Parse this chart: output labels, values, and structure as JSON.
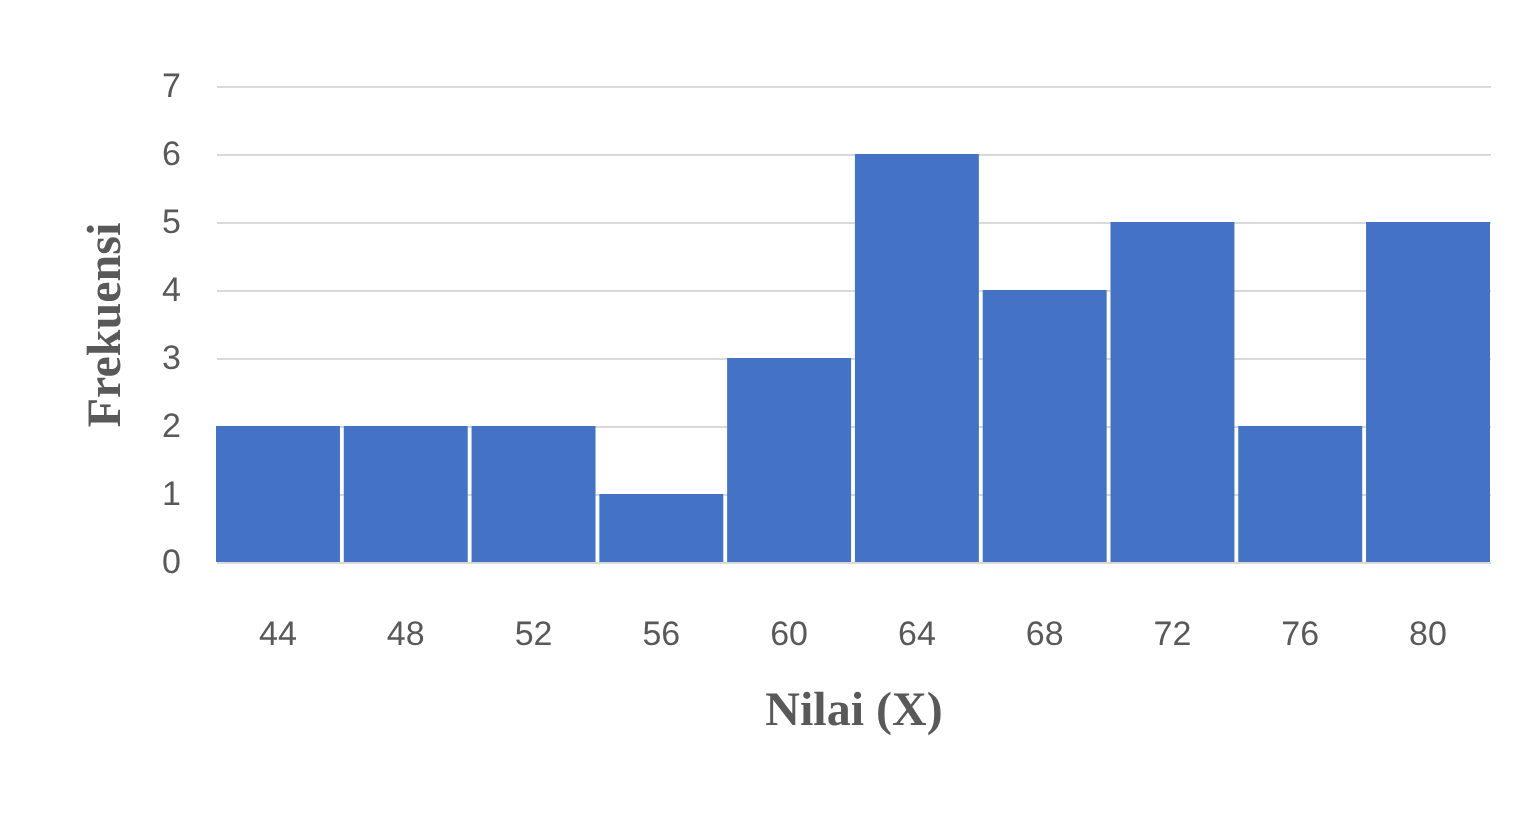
{
  "chart_data": {
    "type": "bar",
    "xlabel": "Nilai (X)",
    "ylabel": "Frekuensi",
    "categories": [
      "44",
      "48",
      "52",
      "56",
      "60",
      "64",
      "68",
      "72",
      "76",
      "80"
    ],
    "values": [
      2,
      2,
      2,
      1,
      3,
      6,
      4,
      5,
      2,
      5
    ],
    "color": "#4472c4",
    "ylim": [
      0,
      7
    ],
    "yticks": [
      0,
      1,
      2,
      3,
      4,
      5,
      6,
      7
    ],
    "grid": "y"
  }
}
